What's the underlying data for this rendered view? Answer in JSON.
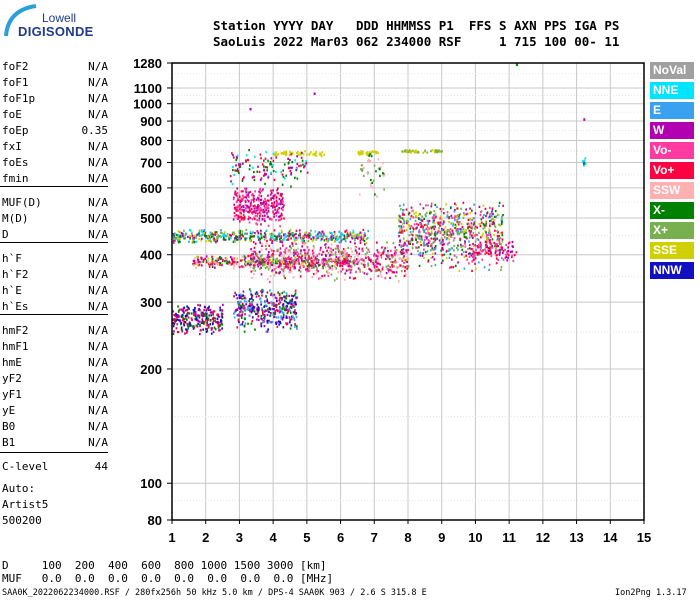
{
  "logo": {
    "line1": "Lowell",
    "line2": "DIGISONDE"
  },
  "header": {
    "line1": "Station YYYY DAY   DDD HHMMSS P1  FFS S AXN PPS IGA PS",
    "line2": "SaoLuis 2022 Mar03 062 234000 RSF     1 715 100 00- 11"
  },
  "params": [
    {
      "name": "foF2",
      "value": "N/A"
    },
    {
      "name": "foF1",
      "value": "N/A"
    },
    {
      "name": "foF1p",
      "value": "N/A"
    },
    {
      "name": "foE",
      "value": "N/A"
    },
    {
      "name": "foEp",
      "value": "0.35"
    },
    {
      "name": "fxI",
      "value": "N/A"
    },
    {
      "name": "foEs",
      "value": "N/A"
    },
    {
      "name": "fmin",
      "value": "N/A"
    },
    {
      "name": "MUF(D)",
      "value": "N/A"
    },
    {
      "name": "M(D)",
      "value": "N/A"
    },
    {
      "name": "D",
      "value": "N/A"
    },
    {
      "name": "h`F",
      "value": "N/A"
    },
    {
      "name": "h`F2",
      "value": "N/A"
    },
    {
      "name": "h`E",
      "value": "N/A"
    },
    {
      "name": "h`Es",
      "value": "N/A"
    },
    {
      "name": "hmF2",
      "value": "N/A"
    },
    {
      "name": "hmF1",
      "value": "N/A"
    },
    {
      "name": "hmE",
      "value": "N/A"
    },
    {
      "name": "yF2",
      "value": "N/A"
    },
    {
      "name": "yF1",
      "value": "N/A"
    },
    {
      "name": "yE",
      "value": "N/A"
    },
    {
      "name": "B0",
      "value": "N/A"
    },
    {
      "name": "B1",
      "value": "N/A"
    },
    {
      "name": "C-level",
      "value": "44"
    }
  ],
  "auto": {
    "line1": "Auto:",
    "line2": "Artist5",
    "line3": "500200"
  },
  "legend": [
    {
      "label": "NoVal",
      "color": "#a0a0a0"
    },
    {
      "label": "NNE",
      "color": "#00e5ff"
    },
    {
      "label": "E",
      "color": "#3aa0f0"
    },
    {
      "label": "W",
      "color": "#b000b0"
    },
    {
      "label": "Vo-",
      "color": "#ff3aa0"
    },
    {
      "label": "Vo+",
      "color": "#ff0040"
    },
    {
      "label": "SSW",
      "color": "#ffb0b0"
    },
    {
      "label": "X-",
      "color": "#008000"
    },
    {
      "label": "X+",
      "color": "#78b050"
    },
    {
      "label": "SSE",
      "color": "#d0d000"
    },
    {
      "label": "NNW",
      "color": "#1010c0"
    }
  ],
  "footer": {
    "d_row": "D     100  200  400  600  800 1000 1500 3000 [km]",
    "muf_row": "MUF   0.0  0.0  0.0  0.0  0.0  0.0  0.0  0.0 [MHz]",
    "file_line": "SAA0K_2022062234000.RSF / 280fx256h 50 kHz 5.0 km / DPS-4 SAA0K 903 / 2.6 S 315.8 E",
    "version": "Ion2Png 1.3.17"
  },
  "chart_data": {
    "type": "scatter",
    "title": "",
    "xlabel": "",
    "ylabel": "",
    "x_range": [
      1,
      15
    ],
    "y_range": [
      80,
      1280
    ],
    "y_scale": "log",
    "x_ticks": [
      1,
      2,
      3,
      4,
      5,
      6,
      7,
      8,
      9,
      10,
      11,
      12,
      13,
      14,
      15
    ],
    "y_ticks": [
      80,
      100,
      200,
      300,
      400,
      500,
      600,
      700,
      800,
      900,
      1000,
      1100,
      1280
    ],
    "grid": true,
    "clusters": [
      {
        "f": [
          1.0,
          2.5
        ],
        "h": [
          245,
          300
        ],
        "colors": [
          "W",
          "NNW",
          "X-",
          "Vo+"
        ],
        "n": 260
      },
      {
        "f": [
          2.8,
          4.7
        ],
        "h": [
          250,
          330
        ],
        "colors": [
          "NNW",
          "W",
          "Vo+",
          "X-",
          "E"
        ],
        "n": 380
      },
      {
        "f": [
          2.8,
          4.3
        ],
        "h": [
          470,
          610
        ],
        "colors": [
          "W",
          "Vo+",
          "Vo-"
        ],
        "n": 320
      },
      {
        "f": [
          1.0,
          6.8
        ],
        "h": [
          430,
          470
        ],
        "colors": [
          "E",
          "NNE",
          "X+",
          "SSE",
          "W",
          "Vo+",
          "X-"
        ],
        "n": 520
      },
      {
        "f": [
          1.6,
          6.5
        ],
        "h": [
          370,
          400
        ],
        "colors": [
          "Vo+",
          "W",
          "SSW",
          "X-",
          "SSE"
        ],
        "n": 420
      },
      {
        "f": [
          3.3,
          8.0
        ],
        "h": [
          340,
          440
        ],
        "colors": [
          "Vo+",
          "Vo-",
          "W",
          "SSW",
          "X+"
        ],
        "n": 650
      },
      {
        "f": [
          7.7,
          10.8
        ],
        "h": [
          360,
          560
        ],
        "colors": [
          "Vo+",
          "Vo-",
          "W",
          "X-",
          "X+",
          "SSE",
          "E"
        ],
        "n": 700
      },
      {
        "f": [
          9.8,
          11.2
        ],
        "h": [
          380,
          440
        ],
        "colors": [
          "Vo+",
          "Vo-",
          "W"
        ],
        "n": 90
      },
      {
        "f": [
          4.0,
          5.5
        ],
        "h": [
          730,
          755
        ],
        "colors": [
          "SSE"
        ],
        "n": 60
      },
      {
        "f": [
          6.5,
          7.1
        ],
        "h": [
          735,
          760
        ],
        "colors": [
          "SSE"
        ],
        "n": 40
      },
      {
        "f": [
          7.8,
          9.0
        ],
        "h": [
          745,
          760
        ],
        "colors": [
          "SSE",
          "X+"
        ],
        "n": 60
      },
      {
        "f": [
          2.7,
          5.0
        ],
        "h": [
          600,
          780
        ],
        "colors": [
          "W",
          "Vo+",
          "NNE",
          "X-"
        ],
        "n": 130
      },
      {
        "f": [
          6.5,
          7.3
        ],
        "h": [
          560,
          790
        ],
        "colors": [
          "X-",
          "SSW",
          "X+"
        ],
        "n": 40
      },
      {
        "f": [
          13.15,
          13.25
        ],
        "h": [
          680,
          730
        ],
        "colors": [
          "W",
          "NNE",
          "X-"
        ],
        "n": 10
      }
    ],
    "single_points": [
      {
        "f": 11.2,
        "h": 1275,
        "c": "X-"
      },
      {
        "f": 3.3,
        "h": 975,
        "c": "W"
      },
      {
        "f": 5.2,
        "h": 1070,
        "c": "W"
      },
      {
        "f": 13.2,
        "h": 915,
        "c": "W"
      }
    ]
  }
}
